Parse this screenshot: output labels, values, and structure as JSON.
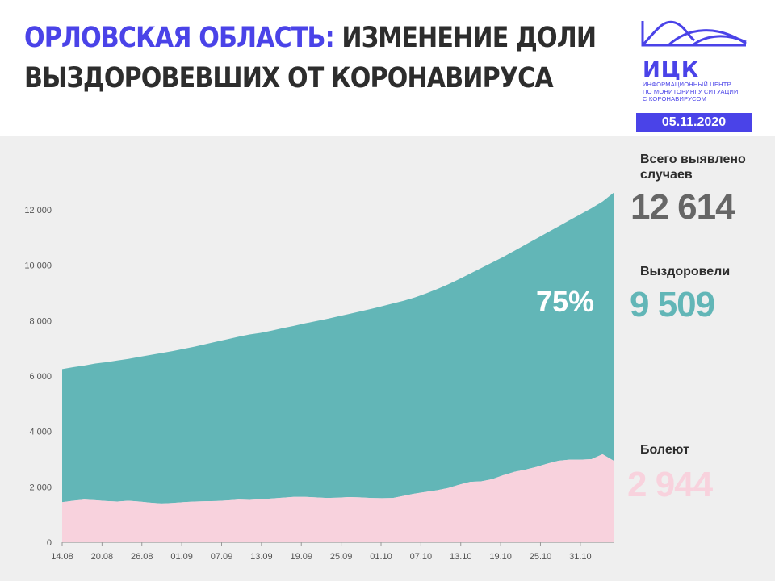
{
  "header": {
    "title_accent": "ОРЛОВСКАЯ ОБЛАСТЬ:",
    "title_rest": " ИЗМЕНЕНИЕ ДОЛИ",
    "title_line2": "ВЫЗДОРОВЕВШИХ ОТ КОРОНАВИРУСА",
    "logo_name": "ИЦК",
    "logo_line1": "ИНФОРМАЦИОННЫЙ ЦЕНТР",
    "logo_line2": "ПО МОНИТОРИНГУ СИТУАЦИИ",
    "logo_line3": "С КОРОНАВИРУСОМ",
    "date": "05.11.2020"
  },
  "stats": {
    "total_label_1": "Всего выявлено",
    "total_label_2": "случаев",
    "total_value": "12 614",
    "recovered_label": "Выздоровели",
    "recovered_value": "9 509",
    "sick_label": "Болеют",
    "sick_value": "2 944"
  },
  "colors": {
    "accent": "#4a43e8",
    "recovered": "#62b6b7",
    "sick": "#f8d2dd",
    "total_text": "#666666"
  },
  "chart_data": {
    "type": "area",
    "annotation": "75%",
    "x_tick_labels": [
      "14.08",
      "20.08",
      "26.08",
      "01.09",
      "07.09",
      "13.09",
      "19.09",
      "25.09",
      "01.10",
      "07.10",
      "13.10",
      "19.10",
      "25.10",
      "31.10"
    ],
    "y_tick_labels": [
      "0",
      "2 000",
      "4 000",
      "6 000",
      "8 000",
      "10 000",
      "12 000"
    ],
    "ylim": [
      0,
      12000
    ],
    "x_start": "14.08",
    "x_end": "05.11",
    "series": [
      {
        "name": "Выздоровели",
        "color": "#62b6b7",
        "stacked_on": "Болеют",
        "total_values": [
          6250,
          6320,
          6380,
          6450,
          6500,
          6560,
          6620,
          6690,
          6760,
          6830,
          6900,
          6980,
          7060,
          7150,
          7240,
          7330,
          7420,
          7500,
          7560,
          7640,
          7730,
          7810,
          7900,
          7980,
          8060,
          8150,
          8240,
          8330,
          8420,
          8520,
          8620,
          8720,
          8840,
          8980,
          9140,
          9310,
          9500,
          9700,
          9900,
          10100,
          10300,
          10520,
          10740,
          10960,
          11180,
          11400,
          11620,
          11840,
          12060,
          12300,
          12614
        ]
      },
      {
        "name": "Болеют",
        "color": "#f8d2dd",
        "values": [
          1450,
          1500,
          1540,
          1520,
          1490,
          1470,
          1500,
          1470,
          1430,
          1400,
          1420,
          1450,
          1470,
          1480,
          1490,
          1510,
          1540,
          1530,
          1550,
          1580,
          1610,
          1640,
          1640,
          1620,
          1600,
          1610,
          1630,
          1620,
          1600,
          1590,
          1600,
          1680,
          1760,
          1820,
          1880,
          1960,
          2080,
          2180,
          2200,
          2280,
          2420,
          2540,
          2620,
          2720,
          2840,
          2940,
          2980,
          2980,
          3000,
          3180,
          2944
        ]
      }
    ]
  }
}
